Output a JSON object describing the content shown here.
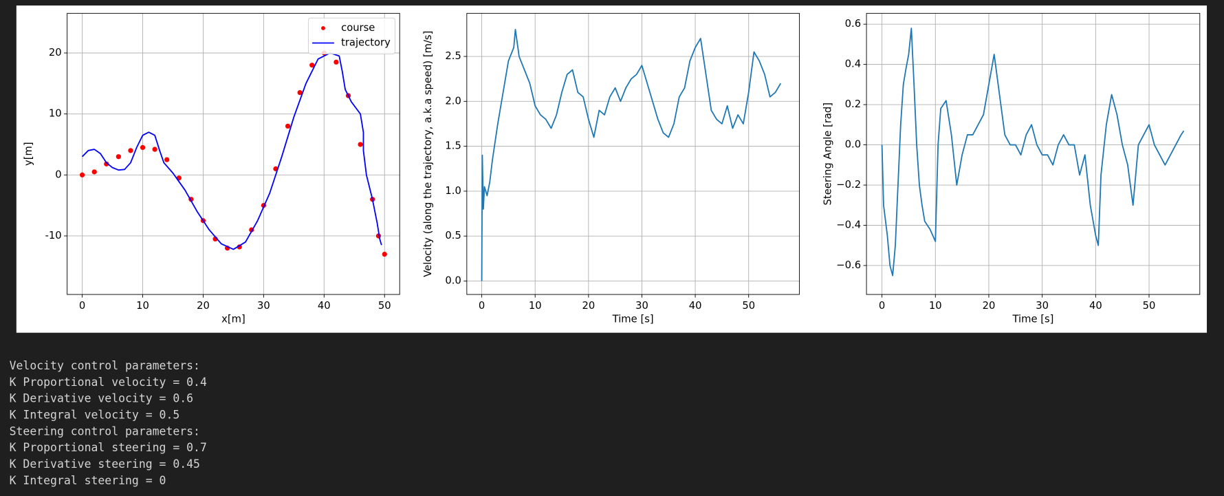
{
  "chart_data": [
    {
      "type": "scatter",
      "xlabel": "x[m]",
      "ylabel": "y[m]",
      "grid": true,
      "legend": "upper right",
      "xlim": [
        -2.5,
        52.5
      ],
      "ylim": [
        -19.6,
        26.5
      ],
      "xticks": [
        0,
        10,
        20,
        30,
        40,
        50
      ],
      "yticks": [
        -10,
        0,
        10,
        20
      ],
      "series": [
        {
          "name": "course",
          "type": "scatter",
          "color": "#ff0000",
          "x": [
            0,
            2,
            4,
            6,
            8,
            10,
            12,
            14,
            16,
            18,
            20,
            22,
            24,
            26,
            28,
            30,
            32,
            34,
            36,
            38,
            40,
            42,
            44,
            46,
            48,
            49,
            50
          ],
          "values": [
            0,
            0.5,
            1.8,
            3,
            4,
            4.5,
            4.2,
            2.5,
            -0.5,
            -4,
            -7.5,
            -10.5,
            -12,
            -11.8,
            -9,
            -5,
            1,
            8,
            13.5,
            18,
            20,
            18.5,
            13,
            5,
            -4,
            -10,
            -13
          ]
        },
        {
          "name": "trajectory",
          "type": "line",
          "color": "#0000ff",
          "x": [
            0,
            1,
            2,
            3,
            4,
            5,
            6,
            7,
            8,
            9,
            10,
            11,
            12,
            12.8,
            13.5,
            15,
            17,
            19,
            21,
            23,
            25,
            27,
            29,
            31,
            33,
            35,
            37,
            39,
            41,
            42.5,
            43,
            43.5,
            44.5,
            46,
            46.5,
            46.5,
            47,
            48,
            48.8,
            49.2,
            49.5
          ],
          "values": [
            3,
            4,
            4.2,
            3.5,
            2,
            1.2,
            0.8,
            0.9,
            2,
            4.5,
            6.5,
            7,
            6.5,
            4,
            2,
            0.3,
            -2.5,
            -6,
            -9,
            -11.3,
            -12.2,
            -11,
            -7.5,
            -3,
            3,
            9.5,
            15,
            19,
            20,
            19.5,
            17,
            14,
            12,
            10,
            7,
            4,
            0,
            -4,
            -8,
            -10.5,
            -11.5
          ]
        }
      ]
    },
    {
      "type": "line",
      "xlabel": "Time [s]",
      "ylabel": "Velocity (along the trajectory, a.k.a speed) [m/s]",
      "grid": true,
      "xlim": [
        -2.8,
        59.5
      ],
      "ylim": [
        -0.15,
        2.98
      ],
      "xticks": [
        0,
        10,
        20,
        30,
        40,
        50
      ],
      "yticks": [
        {
          "value": 0,
          "label": "0.0"
        },
        0.5,
        {
          "value": 1,
          "label": "1.0"
        },
        1.5,
        {
          "value": 2,
          "label": "2.0"
        },
        2.5
      ],
      "series": [
        {
          "color": "#1f77b4",
          "x": [
            0,
            0.1,
            0.3,
            0.5,
            1,
            1.5,
            2,
            3,
            4,
            5,
            6,
            6.3,
            7,
            8,
            9,
            10,
            11,
            12,
            13,
            14,
            15,
            16,
            17,
            18,
            19,
            20,
            21,
            22,
            23,
            24,
            25,
            26,
            27,
            28,
            29,
            30,
            31,
            32,
            33,
            34,
            35,
            36,
            37,
            38,
            39,
            40,
            41,
            42,
            43,
            44,
            45,
            46,
            47,
            48,
            49,
            50,
            51,
            52,
            53,
            54,
            55,
            56
          ],
          "values": [
            0,
            1.4,
            0.8,
            1.05,
            0.95,
            1.1,
            1.35,
            1.75,
            2.1,
            2.45,
            2.6,
            2.8,
            2.5,
            2.35,
            2.2,
            1.95,
            1.85,
            1.8,
            1.7,
            1.85,
            2.1,
            2.3,
            2.35,
            2.1,
            2.05,
            1.8,
            1.6,
            1.9,
            1.85,
            2.05,
            2.15,
            2.0,
            2.15,
            2.25,
            2.3,
            2.4,
            2.2,
            2.0,
            1.8,
            1.65,
            1.6,
            1.75,
            2.05,
            2.15,
            2.45,
            2.6,
            2.7,
            2.3,
            1.9,
            1.8,
            1.75,
            1.95,
            1.7,
            1.85,
            1.75,
            2.1,
            2.55,
            2.45,
            2.3,
            2.05,
            2.1,
            2.2
          ]
        }
      ]
    },
    {
      "type": "line",
      "xlabel": "Time [s]",
      "ylabel": "Steering Angle [rad]",
      "grid": true,
      "xlim": [
        -2.9,
        59.5
      ],
      "ylim": [
        -0.744,
        0.654
      ],
      "xticks": [
        0,
        10,
        20,
        30,
        40,
        50
      ],
      "yticks": [
        {
          "value": -0.6,
          "label": "−0.6"
        },
        {
          "value": -0.4,
          "label": "−0.4"
        },
        {
          "value": -0.2,
          "label": "−0.2"
        },
        {
          "value": 0,
          "label": "0.0"
        },
        0.2,
        0.4,
        0.6
      ],
      "series": [
        {
          "color": "#1f77b4",
          "x": [
            0,
            0.3,
            1,
            1.5,
            2,
            2.5,
            3,
            3.5,
            4,
            4.5,
            5,
            5.5,
            6,
            6.5,
            7,
            7.5,
            8,
            9,
            10,
            10.5,
            11,
            12,
            13,
            14,
            15,
            16,
            17,
            18,
            19,
            20,
            21,
            22,
            23,
            24,
            25,
            26,
            27,
            28,
            29,
            30,
            31,
            32,
            33,
            34,
            35,
            36,
            37,
            38,
            39,
            40,
            40.5,
            41,
            42,
            43,
            44,
            45,
            46,
            47,
            48,
            49,
            50,
            51,
            52,
            53,
            54,
            55,
            56,
            56.5
          ],
          "values": [
            0,
            -0.3,
            -0.45,
            -0.6,
            -0.65,
            -0.5,
            -0.2,
            0.1,
            0.3,
            0.38,
            0.45,
            0.58,
            0.3,
            0.0,
            -0.2,
            -0.3,
            -0.38,
            -0.42,
            -0.48,
            0.0,
            0.18,
            0.22,
            0.05,
            -0.2,
            -0.05,
            0.05,
            0.05,
            0.1,
            0.15,
            0.3,
            0.45,
            0.25,
            0.05,
            0.0,
            0.0,
            -0.05,
            0.05,
            0.1,
            0.0,
            -0.05,
            -0.05,
            -0.1,
            0.0,
            0.05,
            0.0,
            0.0,
            -0.15,
            -0.05,
            -0.3,
            -0.45,
            -0.5,
            -0.15,
            0.1,
            0.25,
            0.15,
            0.0,
            -0.1,
            -0.3,
            0.0,
            0.05,
            0.1,
            0.0,
            -0.05,
            -0.1,
            -0.05,
            0.0,
            0.05,
            0.07
          ]
        }
      ]
    }
  ],
  "output_text": [
    "Velocity control parameters:",
    "K Proportional velocity = 0.4",
    "K Derivative velocity = 0.6",
    "K Integral velocity = 0.5",
    "Steering control parameters:",
    "K Proportional steering = 0.7",
    "K Derivative steering = 0.45",
    "K Integral steering = 0"
  ]
}
